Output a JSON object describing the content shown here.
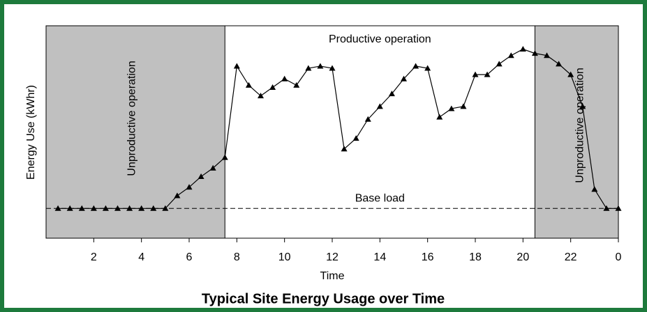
{
  "chart_data": {
    "type": "line",
    "title": "Typical Site Energy Usage over Time",
    "xlabel": "Time",
    "ylabel": "Energy Use (kWhr)",
    "x": [
      0.5,
      1,
      1.5,
      2,
      2.5,
      3,
      3.5,
      4,
      4.5,
      5,
      5.5,
      6,
      6.5,
      7,
      7.5,
      8,
      8.5,
      9,
      9.5,
      10,
      10.5,
      11,
      11.5,
      12,
      12.5,
      13,
      13.5,
      14,
      14.5,
      15,
      15.5,
      16,
      16.5,
      17,
      17.5,
      18,
      18.5,
      19,
      19.5,
      20,
      20.5,
      21,
      21.5,
      22,
      22.5,
      23,
      23.5,
      24
    ],
    "series": [
      {
        "color": "#000000",
        "values": [
          14,
          14,
          14,
          14,
          14,
          14,
          14,
          14,
          14,
          14,
          20,
          24,
          29,
          33,
          38,
          81,
          72,
          67,
          71,
          75,
          72,
          80,
          81,
          80,
          42,
          47,
          56,
          62,
          68,
          75,
          81,
          80,
          57,
          61,
          62,
          77,
          77,
          82,
          86,
          89,
          87,
          86,
          82,
          77,
          62,
          23,
          14,
          14
        ]
      }
    ],
    "xlim": [
      0,
      24
    ],
    "ylim": [
      0,
      100
    ],
    "xticks": [
      2,
      4,
      6,
      8,
      10,
      12,
      14,
      16,
      18,
      20,
      22,
      {
        "value": 24,
        "label": "0"
      }
    ],
    "regions": [
      {
        "start": 0,
        "end": 7.5,
        "label": "Unproductive operation",
        "color": "#c0c0c0"
      },
      {
        "start": 20.5,
        "end": 24,
        "label": "Unproductive operation",
        "color": "#c0c0c0"
      }
    ],
    "middle_label": "Productive operation",
    "baseline": {
      "value": 14,
      "label": "Base load"
    }
  }
}
